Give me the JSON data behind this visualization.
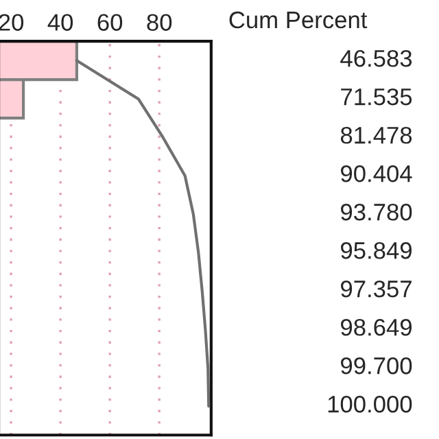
{
  "chart_data": {
    "type": "bar",
    "orientation": "horizontal",
    "categories": [
      null,
      null,
      null,
      null,
      null,
      null,
      null,
      null,
      null,
      null
    ],
    "series": [
      {
        "color": "#ffd0d8",
        "values": [
          46.6,
          25.0,
          null,
          null,
          null,
          null,
          null,
          null,
          null,
          null
        ]
      },
      {
        "type": "line",
        "name": "Cum Percent",
        "color": "#707070",
        "values": [
          46.583,
          71.535,
          81.478,
          90.404,
          93.78,
          95.849,
          97.357,
          98.649,
          99.7,
          100.0
        ],
        "value_labels": [
          "46.583",
          "71.535",
          "81.478",
          "90.404",
          "93.780",
          "95.849",
          "97.357",
          "98.649",
          "99.700",
          "100.000"
        ]
      }
    ],
    "xlim": [
      15,
      101
    ],
    "xticks": [
      20,
      40,
      60,
      80
    ],
    "grid": "x",
    "tick_labels": "x",
    "marker": "none",
    "line_style": "solid"
  }
}
